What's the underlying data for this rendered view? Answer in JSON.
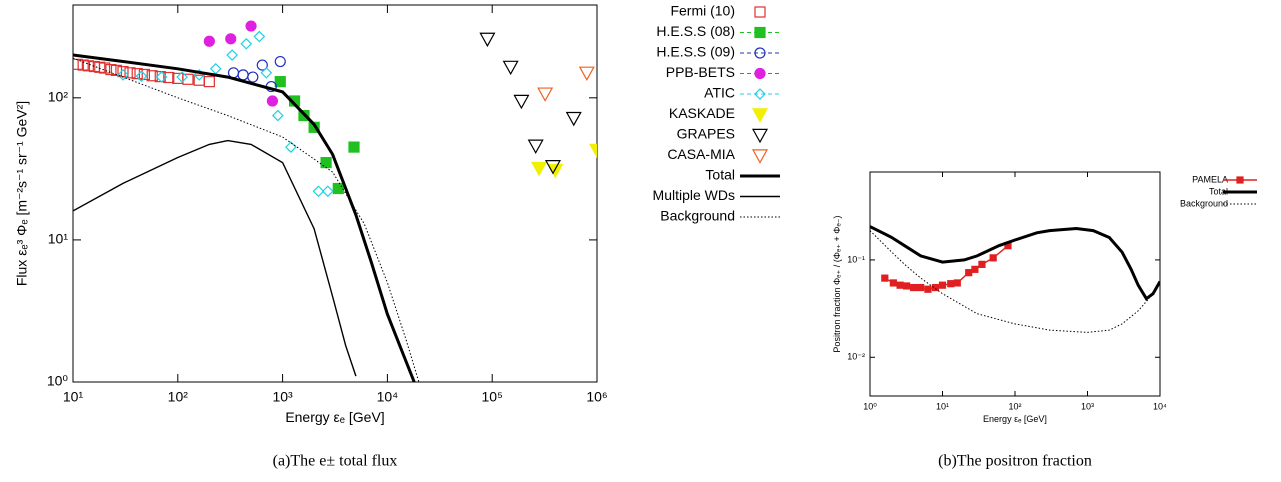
{
  "chart_data": [
    {
      "type": "mixed",
      "caption": "(a)The e± total flux",
      "xlabel": "Energy εₑ [GeV]",
      "ylabel": "Flux εₑ³ Φₑ [m⁻²s⁻¹ sr⁻¹ GeV²]",
      "xscale": "log",
      "yscale": "log",
      "legend": "outside-right",
      "xlim": [
        10,
        1000000
      ],
      "ylim": [
        1,
        450
      ],
      "xticks": [
        {
          "value": 10,
          "label": "10¹"
        },
        {
          "value": 100,
          "label": "10²"
        },
        {
          "value": 1000,
          "label": "10³"
        },
        {
          "value": 10000,
          "label": "10⁴"
        },
        {
          "value": 100000,
          "label": "10⁵"
        },
        {
          "value": 1000000,
          "label": "10⁶"
        }
      ],
      "yticks": [
        {
          "value": 1,
          "label": "10⁰"
        },
        {
          "value": 10,
          "label": "10¹"
        },
        {
          "value": 100,
          "label": "10²"
        }
      ],
      "series": [
        {
          "name": "Fermi (10)",
          "color": "#e03030",
          "style": "open-square",
          "x": [
            11,
            12.5,
            14,
            16,
            18,
            20,
            23,
            26,
            30,
            35,
            41,
            48,
            57,
            68,
            82,
            100,
            125,
            160,
            200
          ],
          "values": [
            172,
            170,
            168,
            166,
            164,
            162,
            158,
            156,
            153,
            150,
            148,
            146,
            143,
            141,
            139,
            137,
            135,
            133,
            130
          ]
        },
        {
          "name": "H.E.S.S (08)",
          "color": "#20c020",
          "style": "filled-square",
          "x": [
            950,
            1300,
            1600,
            2000,
            2600,
            3400,
            4800
          ],
          "values": [
            130,
            95,
            75,
            62,
            35,
            23,
            45
          ]
        },
        {
          "name": "H.E.S.S (09)",
          "color": "#2030c0",
          "style": "open-circle",
          "x": [
            340,
            420,
            520,
            640,
            780,
            950
          ],
          "values": [
            150,
            145,
            140,
            170,
            120,
            180
          ]
        },
        {
          "name": "PPB-BETS",
          "color": "#e020e0",
          "style": "filled-circle",
          "x": [
            200,
            320,
            500,
            800
          ],
          "values": [
            250,
            260,
            320,
            95
          ]
        },
        {
          "name": "ATIC",
          "color": "#20d0e0",
          "style": "open-diamond",
          "x": [
            30,
            45,
            70,
            110,
            160,
            230,
            330,
            450,
            600,
            700,
            900,
            1200,
            2200,
            2700
          ],
          "values": [
            145,
            142,
            140,
            140,
            145,
            160,
            200,
            240,
            270,
            150,
            75,
            45,
            22,
            22
          ]
        },
        {
          "name": "KASKADE",
          "color": "#f0f000",
          "style": "filled-down-triangle",
          "x": [
            280000,
            400000,
            1000000
          ],
          "values": [
            32,
            31,
            43
          ]
        },
        {
          "name": "GRAPES",
          "color": "#000000",
          "style": "open-down-triangle",
          "x": [
            90000,
            150000,
            190000,
            260000,
            380000,
            600000
          ],
          "values": [
            260,
            165,
            95,
            46,
            33,
            72
          ]
        },
        {
          "name": "CASA-MIA",
          "color": "#f06020",
          "style": "open-down-triangle",
          "x": [
            320000,
            800000
          ],
          "values": [
            107,
            150
          ]
        },
        {
          "name": "Total",
          "color": "#000000",
          "style": "thick-line",
          "x": [
            10,
            30,
            100,
            300,
            1000,
            2000,
            3000,
            5000,
            7000,
            10000,
            14000,
            18000
          ],
          "values": [
            200,
            180,
            160,
            140,
            110,
            65,
            40,
            15,
            7,
            3,
            1.6,
            1
          ]
        },
        {
          "name": "Multiple WDs",
          "color": "#000000",
          "style": "line",
          "x": [
            10,
            30,
            100,
            200,
            300,
            500,
            1000,
            2000,
            3000,
            4000,
            5000
          ],
          "values": [
            16,
            25,
            38,
            47,
            50,
            47,
            35,
            12,
            4,
            1.8,
            1.1
          ]
        },
        {
          "name": "Background",
          "color": "#000000",
          "style": "dotted-line",
          "x": [
            10,
            30,
            100,
            300,
            1000,
            3000,
            6000,
            10000,
            15000,
            20000
          ],
          "values": [
            190,
            140,
            100,
            75,
            53,
            30,
            13,
            5,
            2,
            1
          ]
        }
      ]
    },
    {
      "type": "mixed",
      "caption": "(b)The positron fraction",
      "xlabel": "Energy εₑ [GeV]",
      "ylabel": "Positron fraction Φₑ₊ / (Φₑ₊ + Φₑ₋)",
      "xscale": "log",
      "yscale": "log",
      "legend": "outside-right",
      "xlim": [
        1,
        10000
      ],
      "ylim": [
        0.004,
        0.8
      ],
      "xticks": [
        {
          "value": 1,
          "label": "10⁰"
        },
        {
          "value": 10,
          "label": "10¹"
        },
        {
          "value": 100,
          "label": "10²"
        },
        {
          "value": 1000,
          "label": "10³"
        },
        {
          "value": 10000,
          "label": "10⁴"
        }
      ],
      "yticks": [
        {
          "value": 0.01,
          "label": "10⁻²"
        },
        {
          "value": 0.1,
          "label": "10⁻¹"
        }
      ],
      "series": [
        {
          "name": "PAMELA",
          "color": "#e02020",
          "style": "filled-square-line",
          "x": [
            1.6,
            2.1,
            2.6,
            3.2,
            4,
            5,
            6.3,
            8,
            10,
            13,
            16,
            23,
            28,
            35,
            50,
            80
          ],
          "values": [
            0.065,
            0.058,
            0.055,
            0.054,
            0.052,
            0.052,
            0.05,
            0.052,
            0.055,
            0.057,
            0.058,
            0.074,
            0.08,
            0.09,
            0.105,
            0.14
          ]
        },
        {
          "name": "Total",
          "color": "#000000",
          "style": "thick-line",
          "x": [
            1,
            2,
            3,
            5,
            10,
            20,
            30,
            60,
            100,
            200,
            300,
            700,
            1200,
            2000,
            3000,
            4000,
            5000,
            6500,
            8000,
            10000
          ],
          "values": [
            0.22,
            0.17,
            0.14,
            0.11,
            0.095,
            0.1,
            0.11,
            0.14,
            0.16,
            0.19,
            0.2,
            0.21,
            0.2,
            0.17,
            0.12,
            0.08,
            0.055,
            0.04,
            0.045,
            0.06
          ]
        },
        {
          "name": "Background",
          "color": "#000000",
          "style": "dotted-line",
          "x": [
            1,
            2,
            3,
            5,
            10,
            30,
            100,
            300,
            1000,
            2000,
            3000,
            5000,
            7000,
            10000
          ],
          "values": [
            0.2,
            0.12,
            0.09,
            0.065,
            0.045,
            0.028,
            0.022,
            0.019,
            0.018,
            0.019,
            0.022,
            0.03,
            0.04,
            0.06
          ]
        }
      ]
    }
  ]
}
